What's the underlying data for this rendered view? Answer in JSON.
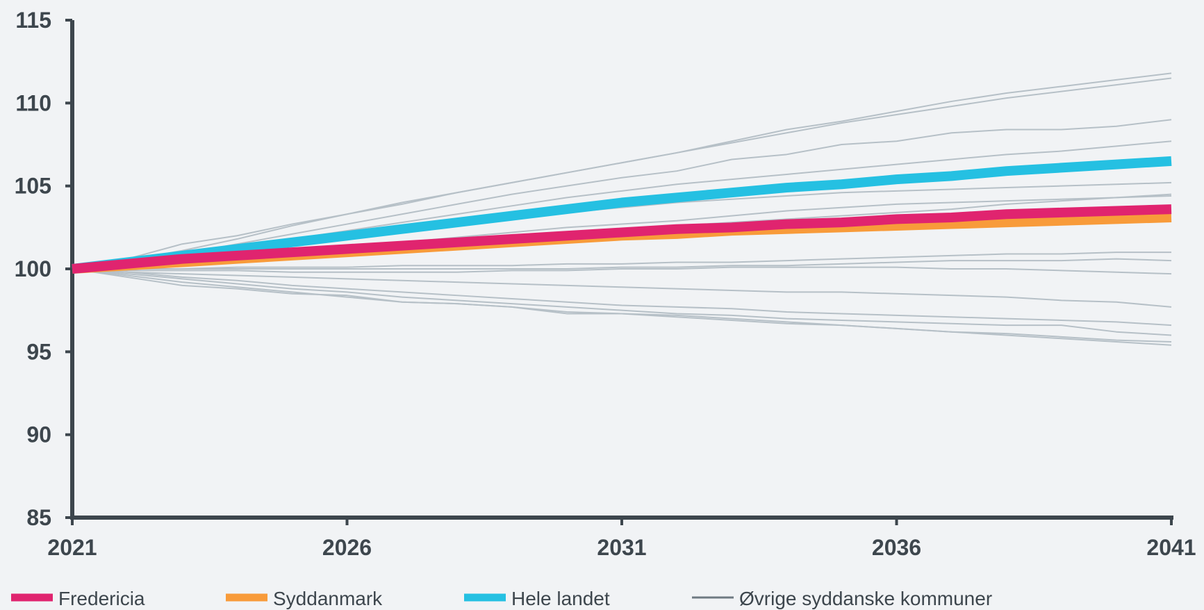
{
  "chart_data": {
    "type": "line",
    "title": "",
    "xlabel": "",
    "ylabel": "",
    "x": [
      2021,
      2022,
      2023,
      2024,
      2025,
      2026,
      2027,
      2028,
      2029,
      2030,
      2031,
      2032,
      2033,
      2034,
      2035,
      2036,
      2037,
      2038,
      2039,
      2040,
      2041
    ],
    "xlim": [
      2021,
      2041
    ],
    "ylim": [
      85,
      115
    ],
    "x_ticks": [
      "2021",
      "2026",
      "2031",
      "2036",
      "2041"
    ],
    "y_ticks": [
      "85",
      "90",
      "95",
      "100",
      "105",
      "110",
      "115"
    ],
    "grid": false,
    "legend_position": "bottom",
    "series": [
      {
        "name": "Fredericia",
        "color": "#e0246f",
        "emphasis": true,
        "values": [
          100,
          100.3,
          100.6,
          100.8,
          101.0,
          101.2,
          101.4,
          101.6,
          101.8,
          102.0,
          102.2,
          102.4,
          102.5,
          102.7,
          102.8,
          103.0,
          103.1,
          103.3,
          103.4,
          103.5,
          103.6
        ]
      },
      {
        "name": "Syddanmark",
        "color": "#f89b3a",
        "emphasis": true,
        "values": [
          100,
          100.2,
          100.4,
          100.6,
          100.8,
          101.0,
          101.2,
          101.4,
          101.6,
          101.8,
          102.0,
          102.1,
          102.3,
          102.4,
          102.5,
          102.6,
          102.7,
          102.8,
          102.9,
          103.0,
          103.1
        ]
      },
      {
        "name": "Hele landet",
        "color": "#25c0e2",
        "emphasis": true,
        "values": [
          100,
          100.4,
          100.8,
          101.2,
          101.6,
          102.0,
          102.4,
          102.8,
          103.2,
          103.6,
          104.0,
          104.3,
          104.6,
          104.9,
          105.1,
          105.4,
          105.6,
          105.9,
          106.1,
          106.3,
          106.5
        ]
      },
      {
        "name": "Øvrige syddanske kommuner",
        "color": "#b6c0c7",
        "emphasis": false,
        "legend": true,
        "values": [
          100,
          100.5,
          101.1,
          101.8,
          102.6,
          103.3,
          104.0,
          104.6,
          105.2,
          105.8,
          106.4,
          107.0,
          107.6,
          108.2,
          108.8,
          109.3,
          109.8,
          110.3,
          110.7,
          111.1,
          111.5
        ]
      },
      {
        "name": "",
        "color": "#b6c0c7",
        "emphasis": false,
        "values": [
          100,
          100.6,
          101.5,
          102.0,
          102.7,
          103.3,
          103.9,
          104.6,
          105.2,
          105.8,
          106.4,
          107.0,
          107.7,
          108.4,
          108.9,
          109.5,
          110.1,
          110.6,
          111.0,
          111.4,
          111.8
        ]
      },
      {
        "name": "",
        "color": "#b6c0c7",
        "emphasis": false,
        "values": [
          100,
          100.4,
          100.9,
          101.5,
          102.1,
          102.7,
          103.3,
          103.9,
          104.5,
          105.0,
          105.5,
          105.9,
          106.6,
          106.9,
          107.5,
          107.7,
          108.2,
          108.4,
          108.4,
          108.6,
          109.0
        ]
      },
      {
        "name": "",
        "color": "#b6c0c7",
        "emphasis": false,
        "values": [
          100,
          100.3,
          100.8,
          101.3,
          101.8,
          102.3,
          102.8,
          103.3,
          103.8,
          104.3,
          104.7,
          105.1,
          105.4,
          105.7,
          106.0,
          106.3,
          106.6,
          106.9,
          107.1,
          107.4,
          107.7
        ]
      },
      {
        "name": "",
        "color": "#b6c0c7",
        "emphasis": false,
        "values": [
          100,
          100.2,
          100.6,
          101.0,
          101.4,
          101.8,
          102.2,
          102.6,
          103.0,
          103.4,
          103.7,
          104.0,
          104.2,
          104.4,
          104.6,
          104.7,
          104.8,
          104.9,
          105.0,
          105.1,
          105.2
        ]
      },
      {
        "name": "",
        "color": "#b6c0c7",
        "emphasis": false,
        "values": [
          100,
          100.2,
          100.4,
          100.7,
          101.0,
          101.3,
          101.6,
          101.9,
          102.2,
          102.5,
          102.7,
          102.9,
          103.2,
          103.5,
          103.7,
          103.9,
          104.0,
          104.1,
          104.2,
          104.3,
          104.4
        ]
      },
      {
        "name": "",
        "color": "#b6c0c7",
        "emphasis": false,
        "values": [
          100,
          100.2,
          100.4,
          100.6,
          100.8,
          101.0,
          101.2,
          101.4,
          101.7,
          102.0,
          102.3,
          102.6,
          102.8,
          103.0,
          103.2,
          103.4,
          103.6,
          103.9,
          104.1,
          104.3,
          104.5
        ]
      },
      {
        "name": "",
        "color": "#b6c0c7",
        "emphasis": false,
        "values": [
          100,
          100.0,
          100.0,
          100.1,
          100.1,
          100.1,
          100.2,
          100.2,
          100.2,
          100.3,
          100.3,
          100.4,
          100.4,
          100.5,
          100.6,
          100.7,
          100.8,
          100.9,
          100.9,
          101.0,
          101.0
        ]
      },
      {
        "name": "",
        "color": "#b6c0c7",
        "emphasis": false,
        "values": [
          100,
          100.0,
          100.0,
          100.0,
          100.0,
          100.0,
          100.0,
          100.0,
          100.0,
          100.0,
          100.1,
          100.1,
          100.2,
          100.2,
          100.3,
          100.4,
          100.5,
          100.5,
          100.5,
          100.6,
          100.5
        ]
      },
      {
        "name": "",
        "color": "#b6c0c7",
        "emphasis": false,
        "values": [
          100,
          99.9,
          99.9,
          99.9,
          99.8,
          99.8,
          99.8,
          99.8,
          99.9,
          99.9,
          100.0,
          100.0,
          100.1,
          100.1,
          100.1,
          100.1,
          100.0,
          100.0,
          99.9,
          99.8,
          99.7
        ]
      },
      {
        "name": "",
        "color": "#b6c0c7",
        "emphasis": false,
        "values": [
          100,
          99.8,
          99.7,
          99.6,
          99.5,
          99.4,
          99.3,
          99.2,
          99.1,
          99.0,
          98.9,
          98.8,
          98.7,
          98.6,
          98.6,
          98.5,
          98.4,
          98.3,
          98.1,
          98.0,
          97.7
        ]
      },
      {
        "name": "",
        "color": "#b6c0c7",
        "emphasis": false,
        "values": [
          100,
          99.8,
          99.5,
          99.3,
          99.0,
          98.8,
          98.6,
          98.4,
          98.2,
          98.0,
          97.8,
          97.7,
          97.6,
          97.4,
          97.3,
          97.2,
          97.1,
          97.0,
          96.9,
          96.8,
          96.6
        ]
      },
      {
        "name": "",
        "color": "#b6c0c7",
        "emphasis": false,
        "values": [
          100,
          99.7,
          99.4,
          99.1,
          98.8,
          98.6,
          98.3,
          98.1,
          97.9,
          97.7,
          97.5,
          97.3,
          97.2,
          97.0,
          96.9,
          96.8,
          96.7,
          96.6,
          96.6,
          96.2,
          96.0
        ]
      },
      {
        "name": "",
        "color": "#b6c0c7",
        "emphasis": false,
        "values": [
          100,
          99.6,
          99.2,
          98.9,
          98.6,
          98.3,
          98.0,
          97.9,
          97.7,
          97.4,
          97.3,
          97.2,
          97.0,
          96.8,
          96.6,
          96.4,
          96.2,
          96.0,
          95.8,
          95.6,
          95.4
        ]
      },
      {
        "name": "",
        "color": "#b6c0c7",
        "emphasis": false,
        "values": [
          100,
          99.5,
          99.0,
          98.8,
          98.5,
          98.4,
          98.0,
          97.9,
          97.7,
          97.3,
          97.3,
          97.1,
          96.9,
          96.7,
          96.6,
          96.4,
          96.2,
          96.1,
          95.9,
          95.7,
          95.6
        ]
      }
    ]
  }
}
